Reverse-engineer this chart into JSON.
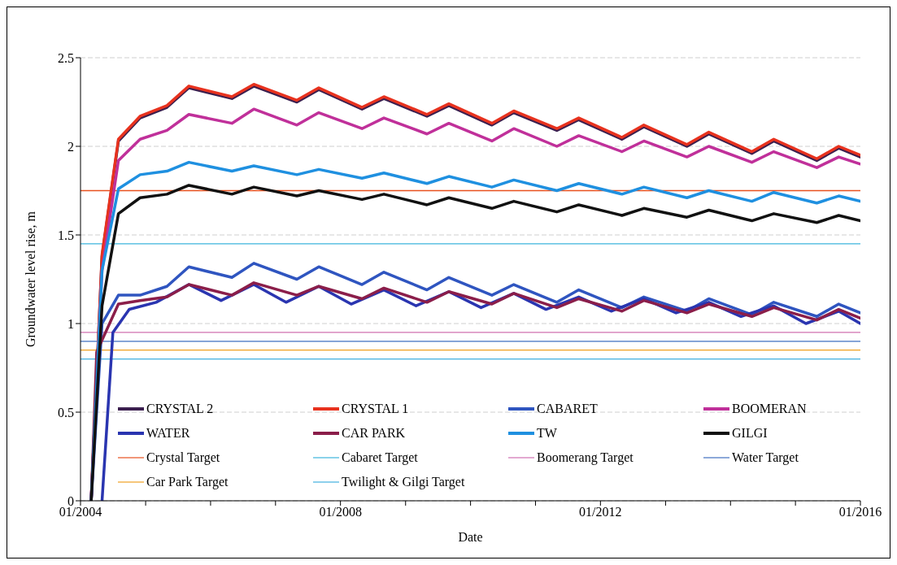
{
  "chart_data": {
    "type": "line",
    "xlabel": "Date",
    "ylabel": "Groundwater level rise, m",
    "xlim": [
      "2004-01",
      "2016-01"
    ],
    "xticks": [
      {
        "value": "2004-01",
        "label": "01/2004"
      },
      {
        "value": "2005-01",
        "label": null
      },
      {
        "value": "2006-01",
        "label": null
      },
      {
        "value": "2007-01",
        "label": null
      },
      {
        "value": "2008-01",
        "label": "01/2008"
      },
      {
        "value": "2009-01",
        "label": null
      },
      {
        "value": "2010-01",
        "label": null
      },
      {
        "value": "2011-01",
        "label": null
      },
      {
        "value": "2012-01",
        "label": "01/2012"
      },
      {
        "value": "2013-01",
        "label": null
      },
      {
        "value": "2014-01",
        "label": null
      },
      {
        "value": "2015-01",
        "label": null
      },
      {
        "value": "2016-01",
        "label": "01/2016"
      }
    ],
    "ylim": [
      0,
      2.5
    ],
    "yticks": [
      0,
      0.5,
      1,
      1.5,
      2,
      2.5
    ],
    "grid": "y",
    "legend": "bottom",
    "marker": "none",
    "line_style": "solid",
    "series": [
      {
        "name": "CRYSTAL 2",
        "color": "#3b1f4f",
        "x": [
          "2004-03",
          "2004-05",
          "2004-08",
          "2004-12",
          "2005-05",
          "2005-09",
          "2006-05",
          "2006-09",
          "2007-05",
          "2007-09",
          "2008-05",
          "2008-09",
          "2009-05",
          "2009-09",
          "2010-05",
          "2010-09",
          "2011-05",
          "2011-09",
          "2012-05",
          "2012-09",
          "2013-05",
          "2013-09",
          "2014-05",
          "2014-09",
          "2015-05",
          "2015-09",
          "2016-01"
        ],
        "values": [
          0,
          1.38,
          2.03,
          2.16,
          2.22,
          2.33,
          2.27,
          2.34,
          2.25,
          2.32,
          2.21,
          2.27,
          2.17,
          2.23,
          2.12,
          2.19,
          2.09,
          2.15,
          2.04,
          2.11,
          2.0,
          2.07,
          1.96,
          2.03,
          1.92,
          1.99,
          1.94
        ]
      },
      {
        "name": "CRYSTAL 1",
        "color": "#e8321e",
        "x": [
          "2004-03",
          "2004-05",
          "2004-08",
          "2004-12",
          "2005-05",
          "2005-09",
          "2006-05",
          "2006-09",
          "2007-05",
          "2007-09",
          "2008-05",
          "2008-09",
          "2009-05",
          "2009-09",
          "2010-05",
          "2010-09",
          "2011-05",
          "2011-09",
          "2012-05",
          "2012-09",
          "2013-05",
          "2013-09",
          "2014-05",
          "2014-09",
          "2015-05",
          "2015-09",
          "2016-01"
        ],
        "values": [
          0,
          1.39,
          2.04,
          2.17,
          2.23,
          2.34,
          2.28,
          2.35,
          2.26,
          2.33,
          2.22,
          2.28,
          2.18,
          2.24,
          2.13,
          2.2,
          2.1,
          2.16,
          2.05,
          2.12,
          2.01,
          2.08,
          1.97,
          2.04,
          1.93,
          2.0,
          1.95
        ]
      },
      {
        "name": "CABARET",
        "color": "#2f55c0",
        "x": [
          "2004-03",
          "2004-05",
          "2004-08",
          "2004-12",
          "2005-05",
          "2005-09",
          "2006-05",
          "2006-09",
          "2007-05",
          "2007-09",
          "2008-05",
          "2008-09",
          "2009-05",
          "2009-09",
          "2010-05",
          "2010-09",
          "2011-05",
          "2011-09",
          "2012-05",
          "2012-09",
          "2013-05",
          "2013-09",
          "2014-05",
          "2014-09",
          "2015-05",
          "2015-09",
          "2016-01"
        ],
        "values": [
          0,
          1.0,
          1.16,
          1.16,
          1.21,
          1.32,
          1.26,
          1.34,
          1.25,
          1.32,
          1.22,
          1.29,
          1.19,
          1.26,
          1.16,
          1.22,
          1.12,
          1.19,
          1.09,
          1.15,
          1.07,
          1.14,
          1.05,
          1.12,
          1.04,
          1.11,
          1.06
        ]
      },
      {
        "name": "BOOMERAN",
        "color": "#c0309a",
        "x": [
          "2004-03",
          "2004-05",
          "2004-08",
          "2004-12",
          "2005-05",
          "2005-09",
          "2006-05",
          "2006-09",
          "2007-05",
          "2007-09",
          "2008-05",
          "2008-09",
          "2009-05",
          "2009-09",
          "2010-05",
          "2010-09",
          "2011-05",
          "2011-09",
          "2012-05",
          "2012-09",
          "2013-05",
          "2013-09",
          "2014-05",
          "2014-09",
          "2015-05",
          "2015-09",
          "2016-01"
        ],
        "values": [
          0,
          1.3,
          1.92,
          2.04,
          2.09,
          2.18,
          2.13,
          2.21,
          2.12,
          2.19,
          2.1,
          2.16,
          2.07,
          2.13,
          2.03,
          2.1,
          2.0,
          2.06,
          1.97,
          2.03,
          1.94,
          2.0,
          1.91,
          1.97,
          1.88,
          1.94,
          1.9
        ]
      },
      {
        "name": "WATER",
        "color": "#2a35b0",
        "x": [
          "2004-05",
          "2004-07",
          "2004-10",
          "2005-03",
          "2005-09",
          "2006-03",
          "2006-09",
          "2007-03",
          "2007-09",
          "2008-03",
          "2008-09",
          "2009-03",
          "2009-09",
          "2010-03",
          "2010-09",
          "2011-03",
          "2011-09",
          "2012-03",
          "2012-09",
          "2013-03",
          "2013-09",
          "2014-03",
          "2014-09",
          "2015-03",
          "2015-09",
          "2016-01"
        ],
        "values": [
          0,
          0.95,
          1.08,
          1.12,
          1.22,
          1.13,
          1.22,
          1.12,
          1.21,
          1.11,
          1.19,
          1.1,
          1.18,
          1.09,
          1.17,
          1.08,
          1.15,
          1.07,
          1.14,
          1.06,
          1.12,
          1.04,
          1.1,
          1.0,
          1.07,
          1.0
        ]
      },
      {
        "name": "CAR PARK",
        "color": "#8b1e4a",
        "x": [
          "2004-03",
          "2004-04",
          "2004-08",
          "2004-12",
          "2005-05",
          "2005-09",
          "2006-05",
          "2006-09",
          "2007-05",
          "2007-09",
          "2008-05",
          "2008-09",
          "2009-05",
          "2009-09",
          "2010-05",
          "2010-09",
          "2011-05",
          "2011-09",
          "2012-05",
          "2012-09",
          "2013-05",
          "2013-09",
          "2014-05",
          "2014-09",
          "2015-05",
          "2015-09",
          "2016-01"
        ],
        "values": [
          0,
          0.84,
          1.11,
          1.13,
          1.15,
          1.22,
          1.16,
          1.23,
          1.16,
          1.21,
          1.14,
          1.2,
          1.12,
          1.18,
          1.11,
          1.17,
          1.09,
          1.14,
          1.07,
          1.13,
          1.06,
          1.11,
          1.04,
          1.09,
          1.02,
          1.08,
          1.03
        ]
      },
      {
        "name": "TW",
        "color": "#1f90e0",
        "x": [
          "2004-03",
          "2004-05",
          "2004-08",
          "2004-12",
          "2005-05",
          "2005-09",
          "2006-05",
          "2006-09",
          "2007-05",
          "2007-09",
          "2008-05",
          "2008-09",
          "2009-05",
          "2009-09",
          "2010-05",
          "2010-09",
          "2011-05",
          "2011-09",
          "2012-05",
          "2012-09",
          "2013-05",
          "2013-09",
          "2014-05",
          "2014-09",
          "2015-05",
          "2015-09",
          "2016-01"
        ],
        "values": [
          0,
          1.3,
          1.76,
          1.84,
          1.86,
          1.91,
          1.86,
          1.89,
          1.84,
          1.87,
          1.82,
          1.85,
          1.79,
          1.83,
          1.77,
          1.81,
          1.75,
          1.79,
          1.73,
          1.77,
          1.71,
          1.75,
          1.69,
          1.74,
          1.68,
          1.72,
          1.69
        ]
      },
      {
        "name": "GILGI",
        "color": "#111111",
        "x": [
          "2004-03",
          "2004-05",
          "2004-08",
          "2004-12",
          "2005-05",
          "2005-09",
          "2006-05",
          "2006-09",
          "2007-05",
          "2007-09",
          "2008-05",
          "2008-09",
          "2009-05",
          "2009-09",
          "2010-05",
          "2010-09",
          "2011-05",
          "2011-09",
          "2012-05",
          "2012-09",
          "2013-05",
          "2013-09",
          "2014-05",
          "2014-09",
          "2015-05",
          "2015-09",
          "2016-01"
        ],
        "values": [
          0,
          1.1,
          1.62,
          1.71,
          1.73,
          1.78,
          1.73,
          1.77,
          1.72,
          1.75,
          1.7,
          1.73,
          1.67,
          1.71,
          1.65,
          1.69,
          1.63,
          1.67,
          1.61,
          1.65,
          1.6,
          1.64,
          1.58,
          1.62,
          1.57,
          1.61,
          1.58
        ]
      }
    ],
    "ref_lines": [
      {
        "axis": "y",
        "value": 1.75,
        "label": "Crystal Target",
        "color": "#e8501e"
      },
      {
        "axis": "y",
        "value": 1.45,
        "label": "Cabaret Target",
        "color": "#3cb4dc"
      },
      {
        "axis": "y",
        "value": 0.95,
        "label": "Boomerang Target",
        "color": "#d070b0"
      },
      {
        "axis": "y",
        "value": 0.9,
        "label": "Water Target",
        "color": "#4070c0"
      },
      {
        "axis": "y",
        "value": 0.85,
        "label": "Car Park Target",
        "color": "#f0a020"
      },
      {
        "axis": "y",
        "value": 0.8,
        "label": "Twilight & Gilgi Target",
        "color": "#40b0e0"
      }
    ]
  }
}
